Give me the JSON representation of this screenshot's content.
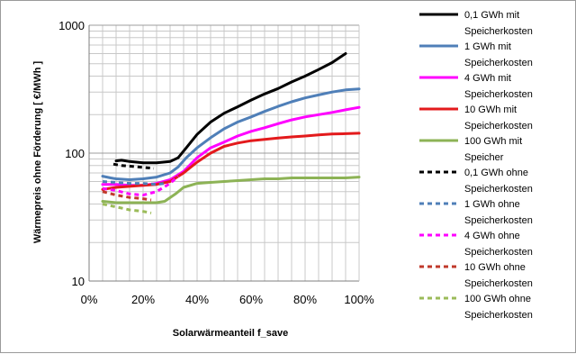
{
  "chart_data": {
    "type": "line",
    "title": "",
    "xlabel": "Solarwärmeanteil f_save",
    "ylabel": "Wärmepreis ohne Förderung [ €/MWh ]",
    "xlim": [
      0,
      100
    ],
    "ylim": [
      10,
      1000
    ],
    "yscale": "log",
    "grid": true,
    "legend_position": "right",
    "x_ticks": [
      "0%",
      "20%",
      "40%",
      "60%",
      "80%",
      "100%"
    ],
    "y_ticks": [
      "10",
      "100",
      "1000"
    ],
    "series": [
      {
        "name": "0,1 GWh mit Speicherkosten",
        "color": "#000000",
        "dash": "solid",
        "x": [
          10,
          12,
          15,
          20,
          25,
          30,
          33,
          36,
          40,
          45,
          50,
          55,
          60,
          65,
          70,
          75,
          80,
          85,
          90,
          95
        ],
        "y": [
          87,
          88,
          86,
          84,
          84,
          86,
          92,
          110,
          140,
          175,
          205,
          230,
          260,
          290,
          320,
          360,
          400,
          450,
          510,
          600
        ]
      },
      {
        "name": "1 GWh mit Speicherkosten",
        "color": "#4f7fb8",
        "dash": "solid",
        "x": [
          5,
          8,
          10,
          15,
          20,
          25,
          30,
          33,
          36,
          40,
          45,
          50,
          55,
          60,
          65,
          70,
          75,
          80,
          85,
          90,
          95,
          100
        ],
        "y": [
          66,
          64,
          63,
          62,
          63,
          65,
          70,
          78,
          92,
          110,
          132,
          155,
          175,
          192,
          212,
          232,
          252,
          270,
          285,
          300,
          312,
          318
        ]
      },
      {
        "name": "4 GWh mit Speicherkosten",
        "color": "#ff00ff",
        "dash": "solid",
        "x": [
          5,
          10,
          15,
          20,
          25,
          30,
          35,
          40,
          45,
          50,
          55,
          60,
          65,
          70,
          75,
          80,
          85,
          90,
          95,
          100
        ],
        "y": [
          57,
          57,
          56,
          56,
          58,
          62,
          72,
          92,
          110,
          122,
          136,
          148,
          158,
          170,
          182,
          192,
          200,
          208,
          218,
          228
        ]
      },
      {
        "name": "10 GWh mit Speicherkosten",
        "color": "#e31a1c",
        "dash": "solid",
        "x": [
          5,
          10,
          15,
          20,
          25,
          30,
          35,
          40,
          45,
          50,
          55,
          60,
          65,
          70,
          75,
          80,
          85,
          90,
          95,
          100
        ],
        "y": [
          52,
          54,
          55,
          56,
          57,
          60,
          70,
          85,
          100,
          113,
          120,
          125,
          128,
          131,
          134,
          136,
          139,
          141,
          142,
          143
        ]
      },
      {
        "name": "100 GWh mit Speicher",
        "color": "#8db356",
        "dash": "solid",
        "x": [
          5,
          10,
          15,
          20,
          25,
          28,
          32,
          35,
          40,
          45,
          50,
          55,
          60,
          65,
          70,
          75,
          80,
          85,
          90,
          95,
          100
        ],
        "y": [
          42,
          41,
          41,
          41,
          41,
          42,
          48,
          54,
          58,
          59,
          60,
          61,
          62,
          63,
          63,
          64,
          64,
          64,
          64,
          64,
          65
        ]
      },
      {
        "name": "0,1 GWh ohne Speicherkosten",
        "color": "#000000",
        "dash": "dashed",
        "x": [
          9,
          12,
          15,
          18,
          21,
          24
        ],
        "y": [
          82,
          80,
          79,
          78,
          77,
          76
        ]
      },
      {
        "name": "1 GWh ohne Speicherkosten",
        "color": "#4f7fb8",
        "dash": "dashed",
        "x": [
          5,
          10,
          15,
          20,
          25,
          28
        ],
        "y": [
          60,
          59,
          58,
          58,
          57,
          58
        ]
      },
      {
        "name": "4 GWh ohne Speicherkosten",
        "color": "#ff00ff",
        "dash": "dashed",
        "x": [
          5,
          10,
          15,
          20,
          25,
          30,
          33
        ],
        "y": [
          53,
          51,
          48,
          47,
          50,
          58,
          66
        ]
      },
      {
        "name": "10 GWh ohne Speicherkosten",
        "color": "#c0392b",
        "dash": "dashed",
        "x": [
          5,
          10,
          15,
          20,
          23
        ],
        "y": [
          50,
          47,
          45,
          44,
          43
        ]
      },
      {
        "name": "100 GWh ohne Speicherkosten",
        "color": "#9bbb59",
        "dash": "dashed",
        "x": [
          5,
          10,
          15,
          20,
          23
        ],
        "y": [
          40,
          38,
          36,
          35,
          34
        ]
      }
    ]
  }
}
